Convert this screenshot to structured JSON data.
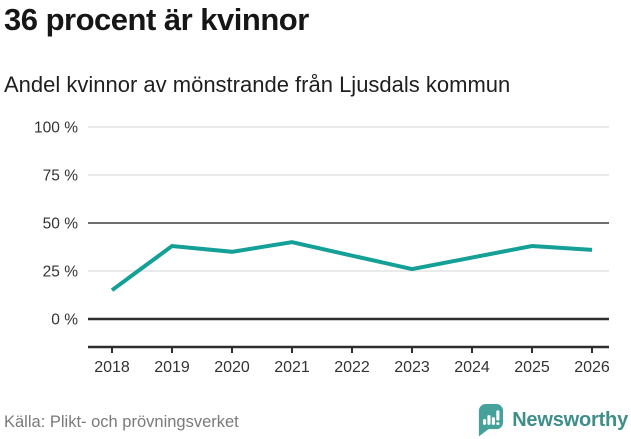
{
  "header": {
    "title": "36 procent är kvinnor",
    "subtitle": "Andel kvinnor av mönstrande från Ljusdals kommun"
  },
  "chart_data": {
    "type": "line",
    "title": "36 procent är kvinnor",
    "subtitle": "Andel kvinnor av mönstrande från Ljusdals kommun",
    "categories": [
      "2018",
      "2019",
      "2020",
      "2021",
      "2022",
      "2023",
      "2024",
      "2025",
      "2026"
    ],
    "values": [
      15,
      38,
      35,
      40,
      33,
      26,
      32,
      38,
      36
    ],
    "series_name": "Andel kvinnor av mönstrande (%)",
    "ylim": [
      0,
      100
    ],
    "yticks": [
      0,
      25,
      50,
      75,
      100
    ],
    "ytick_labels": [
      "0 %",
      "25 %",
      "50 %",
      "75 %",
      "100 %"
    ],
    "grid": "horizontal",
    "legend": "none",
    "line_color": "#14a096",
    "grid_color": "#e4e4e4",
    "mid_grid_color": "#6e6e6e",
    "axis_color": "#2e2e2e",
    "tick_label_color": "#333333"
  },
  "footer": {
    "source": "Källa: Plikt- och prövningsverket",
    "brand": "Newsworthy"
  },
  "colors": {
    "accent_teal": "#14a096",
    "logo_badge": "#45a29b",
    "logo_text": "#3e8e8a"
  }
}
